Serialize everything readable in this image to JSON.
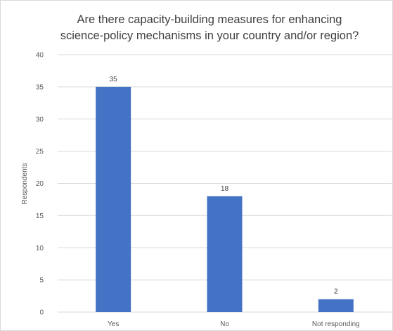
{
  "chart_data": {
    "type": "bar",
    "title_lines": [
      "Are there capacity-building measures for enhancing",
      "science-policy mechanisms in your country and/or region?"
    ],
    "xlabel": "",
    "ylabel": "Respondents",
    "categories": [
      "Yes",
      "No",
      "Not responding"
    ],
    "values": [
      35,
      18,
      2
    ],
    "data_labels": [
      "35",
      "18",
      "2"
    ],
    "ylim": [
      0,
      40
    ],
    "yticks": [
      0,
      5,
      10,
      15,
      20,
      25,
      30,
      35,
      40
    ],
    "grid": true,
    "legend": "none",
    "bar_color": "#4472c4",
    "grid_color": "#d9d9d9"
  }
}
